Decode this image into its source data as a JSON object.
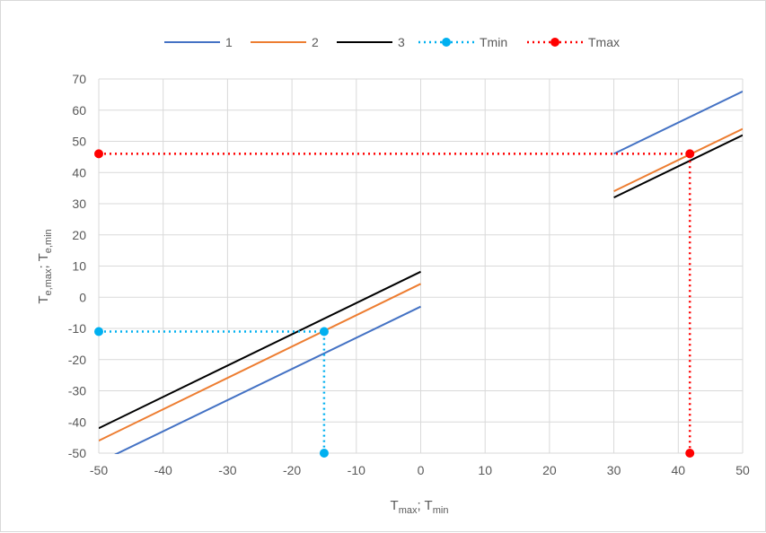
{
  "chart_data": {
    "type": "line",
    "xlabel": {
      "main": "T",
      "sub1": "max",
      "sep": "; T",
      "sub2": "min"
    },
    "ylabel": {
      "main": "T",
      "sub1": "e,max",
      "sep": "; T",
      "sub2": "e,min"
    },
    "xlim": [
      -50,
      50
    ],
    "ylim": [
      -50,
      70
    ],
    "x_ticks": [
      -50,
      -40,
      -30,
      -20,
      -10,
      0,
      10,
      20,
      30,
      40,
      50
    ],
    "y_ticks": [
      -50,
      -40,
      -30,
      -20,
      -10,
      0,
      10,
      20,
      30,
      40,
      50,
      60,
      70
    ],
    "grid": true,
    "legend_position": "top",
    "series": [
      {
        "name": "1",
        "color": "#4472C4",
        "style": "solid",
        "marker": false,
        "segments": [
          [
            [
              -50,
              -53
            ],
            [
              0,
              -3
            ]
          ],
          [
            [
              30,
              46
            ],
            [
              50,
              66
            ]
          ]
        ]
      },
      {
        "name": "2",
        "color": "#ED7D31",
        "style": "solid",
        "marker": false,
        "segments": [
          [
            [
              -50,
              -46
            ],
            [
              0,
              4.3
            ]
          ],
          [
            [
              30,
              34
            ],
            [
              50,
              54
            ]
          ]
        ]
      },
      {
        "name": "3",
        "color": "#000000",
        "style": "solid",
        "marker": false,
        "segments": [
          [
            [
              -50,
              -42
            ],
            [
              0,
              8.2
            ]
          ],
          [
            [
              30,
              32
            ],
            [
              50,
              52
            ]
          ]
        ]
      },
      {
        "name": "Tmin",
        "color": "#00B0F0",
        "style": "dotted",
        "marker": true,
        "segments": [
          [
            [
              -50,
              -11
            ],
            [
              -15,
              -11
            ],
            [
              -15,
              -50
            ]
          ]
        ]
      },
      {
        "name": "Tmax",
        "color": "#FF0000",
        "style": "dotted",
        "marker": true,
        "segments": [
          [
            [
              -50,
              46
            ],
            [
              41.8,
              46
            ],
            [
              41.8,
              -50
            ]
          ]
        ]
      }
    ]
  }
}
